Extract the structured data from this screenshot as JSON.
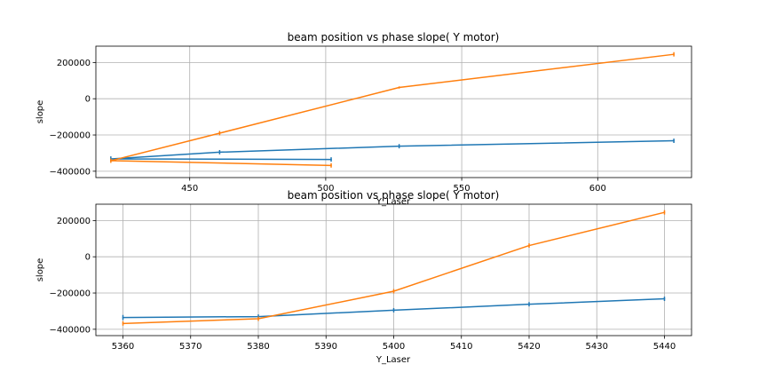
{
  "chart_data": [
    {
      "type": "line",
      "title": "beam position vs phase slope( Y motor)",
      "xlabel": "Y_Laser",
      "ylabel": "slope",
      "xlim": [
        415.5,
        634.5
      ],
      "ylim": [
        -435000,
        290000
      ],
      "xticks": [
        450,
        500,
        550,
        600
      ],
      "yticks": [
        -400000,
        -200000,
        0,
        200000
      ],
      "xtick_labels": [
        "450",
        "500",
        "550",
        "600"
      ],
      "ytick_labels": [
        "−400000",
        "−200000",
        "0",
        "200000"
      ],
      "grid": true,
      "colors": [
        "#1f77b4",
        "#ff7f0e"
      ],
      "series": [
        {
          "points": [
            [
              502,
              -335000
            ],
            [
              421,
              -332000
            ],
            [
              461,
              -295000
            ],
            [
              527,
              -262000
            ],
            [
              628,
              -232000
            ]
          ],
          "errors": [
            12000,
            14000,
            12000,
            12000,
            12000
          ]
        },
        {
          "points": [
            [
              502,
              -368000
            ],
            [
              421,
              -342000
            ],
            [
              461,
              -190000
            ],
            [
              527,
              62000
            ],
            [
              628,
              245000
            ]
          ],
          "errors": [
            12000,
            12000,
            12000,
            6000,
            12000
          ]
        }
      ]
    },
    {
      "type": "line",
      "title": "beam position vs phase slope( Y motor)",
      "xlabel": "Y_Laser",
      "ylabel": "slope",
      "xlim": [
        5356,
        5444
      ],
      "ylim": [
        -435000,
        290000
      ],
      "xticks": [
        5360,
        5370,
        5380,
        5390,
        5400,
        5410,
        5420,
        5430,
        5440
      ],
      "yticks": [
        -400000,
        -200000,
        0,
        200000
      ],
      "xtick_labels": [
        "5360",
        "5370",
        "5380",
        "5390",
        "5400",
        "5410",
        "5420",
        "5430",
        "5440"
      ],
      "ytick_labels": [
        "−400000",
        "−200000",
        "0",
        "200000"
      ],
      "grid": true,
      "colors": [
        "#1f77b4",
        "#ff7f0e"
      ],
      "series": [
        {
          "points": [
            [
              5360,
              -335000
            ],
            [
              5380,
              -330000
            ],
            [
              5400,
              -295000
            ],
            [
              5420,
              -262000
            ],
            [
              5440,
              -232000
            ]
          ],
          "errors": [
            14000,
            12000,
            12000,
            12000,
            12000
          ]
        },
        {
          "points": [
            [
              5360,
              -368000
            ],
            [
              5380,
              -342000
            ],
            [
              5400,
              -190000
            ],
            [
              5420,
              62000
            ],
            [
              5440,
              245000
            ]
          ],
          "errors": [
            12000,
            12000,
            12000,
            12000,
            12000
          ]
        }
      ]
    }
  ]
}
